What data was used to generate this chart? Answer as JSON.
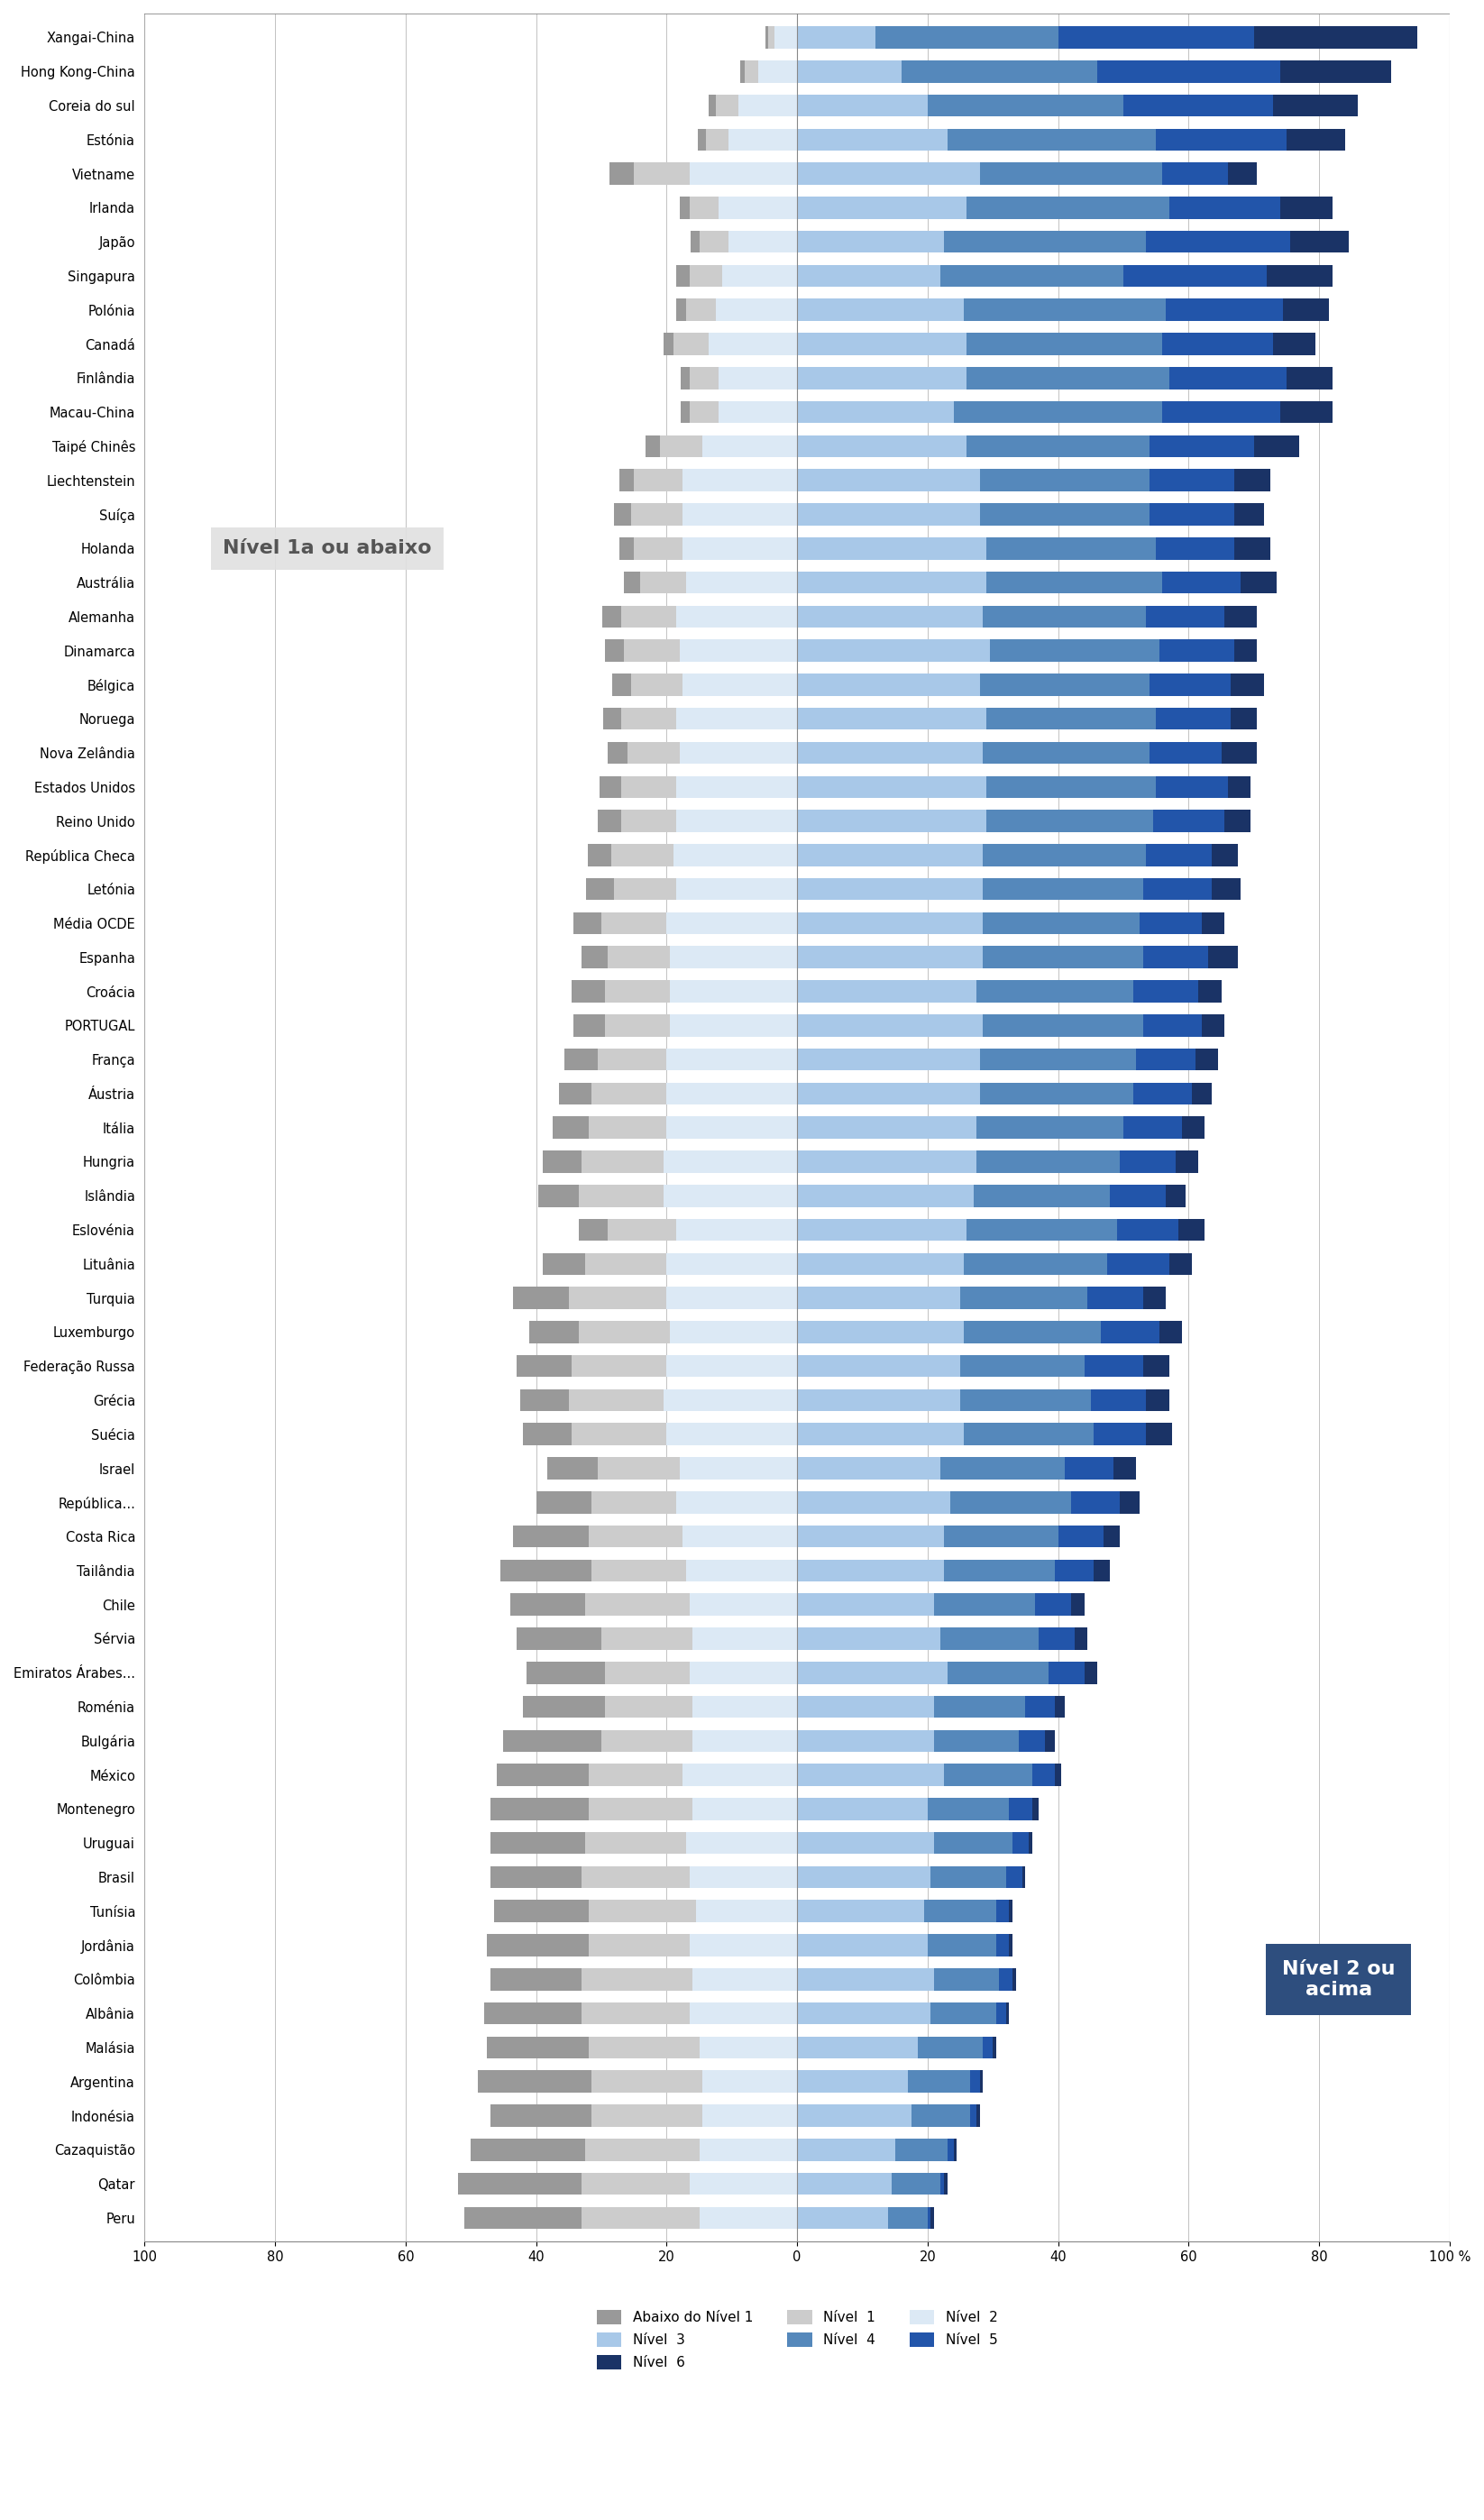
{
  "countries": [
    "Xangai-China",
    "Hong Kong-China",
    "Coreia do sul",
    "Estónia",
    "Vietname",
    "Irlanda",
    "Japão",
    "Singapura",
    "Polónia",
    "Canadá",
    "Finlândia",
    "Macau-China",
    "Taipé Chinês",
    "Liechtenstein",
    "Suíça",
    "Holanda",
    "Austrália",
    "Alemanha",
    "Dinamarca",
    "Bélgica",
    "Noruega",
    "Nova Zelândia",
    "Estados Unidos",
    "Reino Unido",
    "República Checa",
    "Letónia",
    "Média OCDE",
    "Espanha",
    "Croácia",
    "PORTUGAL",
    "França",
    "Áustria",
    "Itália",
    "Hungria",
    "Islândia",
    "Eslovénia",
    "Lituânia",
    "Turquia",
    "Luxemburgo",
    "Federação Russa",
    "Grécia",
    "Suécia",
    "Israel",
    "República...",
    "Costa Rica",
    "Tailândia",
    "Chile",
    "Sérvia",
    "Emiratos Árabes...",
    "Roménia",
    "Bulgária",
    "México",
    "Montenegro",
    "Uruguai",
    "Brasil",
    "Tunísia",
    "Jordânia",
    "Colômbia",
    "Albânia",
    "Malásia",
    "Argentina",
    "Indonésia",
    "Cazaquistão",
    "Qatar",
    "Peru"
  ],
  "left_levels": {
    "nivel2": [
      3.5,
      6.0,
      9.0,
      10.5,
      16.5,
      12.0,
      10.5,
      11.5,
      12.5,
      13.5,
      12.0,
      12.0,
      14.5,
      17.5,
      17.5,
      17.5,
      17.0,
      18.5,
      18.0,
      17.5,
      18.5,
      18.0,
      18.5,
      18.5,
      19.0,
      18.5,
      20.0,
      19.5,
      19.5,
      19.5,
      20.0,
      20.0,
      20.0,
      20.5,
      20.5,
      18.5,
      20.0,
      20.0,
      19.5,
      20.0,
      20.5,
      20.0,
      18.0,
      18.5,
      17.5,
      17.0,
      16.5,
      16.0,
      16.5,
      16.0,
      16.0,
      17.5,
      16.0,
      17.0,
      16.5,
      15.5,
      16.5,
      16.0,
      16.5,
      15.0,
      14.5,
      14.5,
      15.0,
      16.5,
      15.0
    ],
    "nivel1": [
      0.9,
      2.0,
      3.5,
      3.5,
      8.5,
      4.5,
      4.5,
      5.0,
      4.5,
      5.5,
      4.5,
      4.5,
      6.5,
      7.5,
      8.0,
      7.5,
      7.0,
      8.5,
      8.5,
      8.0,
      8.5,
      8.0,
      8.5,
      8.5,
      9.5,
      9.5,
      10.0,
      9.5,
      10.0,
      10.0,
      10.5,
      11.5,
      12.0,
      12.5,
      13.0,
      10.5,
      12.5,
      15.0,
      14.0,
      14.5,
      14.5,
      14.5,
      12.5,
      13.0,
      14.5,
      14.5,
      16.0,
      14.0,
      13.0,
      13.5,
      14.0,
      14.5,
      16.0,
      15.5,
      16.5,
      16.5,
      15.5,
      17.0,
      16.5,
      17.0,
      17.0,
      17.0,
      17.5,
      16.5,
      18.0
    ],
    "abaixo1": [
      0.4,
      0.7,
      1.1,
      1.2,
      3.8,
      1.5,
      1.3,
      2.0,
      1.5,
      1.5,
      1.4,
      1.4,
      2.2,
      2.3,
      2.6,
      2.3,
      2.5,
      2.8,
      3.0,
      2.9,
      2.7,
      3.0,
      3.3,
      3.5,
      3.6,
      4.3,
      4.3,
      4.0,
      5.0,
      4.8,
      5.2,
      5.0,
      5.5,
      6.0,
      6.2,
      4.5,
      6.5,
      8.5,
      7.5,
      8.5,
      7.5,
      7.5,
      7.8,
      8.5,
      11.5,
      14.0,
      11.5,
      13.0,
      12.0,
      12.5,
      15.0,
      14.0,
      15.0,
      14.5,
      14.0,
      14.5,
      15.5,
      14.0,
      15.0,
      15.5,
      17.5,
      15.5,
      17.5,
      19.0,
      18.0
    ]
  },
  "right_levels": {
    "nivel3": [
      12.0,
      16.0,
      20.0,
      23.0,
      28.0,
      26.0,
      22.5,
      22.0,
      25.5,
      26.0,
      26.0,
      24.0,
      26.0,
      28.0,
      28.0,
      29.0,
      29.0,
      28.5,
      29.5,
      28.0,
      29.0,
      28.5,
      29.0,
      29.0,
      28.5,
      28.5,
      28.5,
      28.5,
      27.5,
      28.5,
      28.0,
      28.0,
      27.5,
      27.5,
      27.0,
      26.0,
      25.5,
      25.0,
      25.5,
      25.0,
      25.0,
      25.5,
      22.0,
      23.5,
      22.5,
      22.5,
      21.0,
      22.0,
      23.0,
      21.0,
      21.0,
      22.5,
      20.0,
      21.0,
      20.5,
      19.5,
      20.0,
      21.0,
      20.5,
      18.5,
      17.0,
      17.5,
      15.0,
      14.5,
      14.0
    ],
    "nivel4": [
      28.0,
      30.0,
      30.0,
      32.0,
      28.0,
      31.0,
      31.0,
      28.0,
      31.0,
      30.0,
      31.0,
      32.0,
      28.0,
      26.0,
      26.0,
      26.0,
      27.0,
      25.0,
      26.0,
      26.0,
      26.0,
      25.5,
      26.0,
      25.5,
      25.0,
      24.5,
      24.0,
      24.5,
      24.0,
      24.5,
      24.0,
      23.5,
      22.5,
      22.0,
      21.0,
      23.0,
      22.0,
      19.5,
      21.0,
      19.0,
      20.0,
      20.0,
      19.0,
      18.5,
      17.5,
      17.0,
      15.5,
      15.0,
      15.5,
      14.0,
      13.0,
      13.5,
      12.5,
      12.0,
      11.5,
      11.0,
      10.5,
      10.0,
      10.0,
      10.0,
      9.5,
      9.0,
      8.0,
      7.5,
      6.0
    ],
    "nivel5": [
      30.0,
      28.0,
      23.0,
      20.0,
      10.0,
      17.0,
      22.0,
      22.0,
      18.0,
      17.0,
      18.0,
      18.0,
      16.0,
      13.0,
      13.0,
      12.0,
      12.0,
      12.0,
      11.5,
      12.5,
      11.5,
      11.0,
      11.0,
      11.0,
      10.0,
      10.5,
      9.5,
      10.0,
      10.0,
      9.0,
      9.0,
      9.0,
      9.0,
      8.5,
      8.5,
      9.5,
      9.5,
      8.5,
      9.0,
      9.0,
      8.5,
      8.0,
      7.5,
      7.5,
      7.0,
      6.0,
      5.5,
      5.5,
      5.5,
      4.5,
      4.0,
      3.5,
      3.5,
      2.5,
      2.5,
      2.0,
      2.0,
      2.0,
      1.5,
      1.5,
      1.5,
      1.0,
      1.0,
      0.5,
      0.5
    ],
    "nivel6": [
      25.0,
      17.0,
      13.0,
      9.0,
      4.5,
      8.0,
      9.0,
      10.0,
      7.0,
      6.5,
      7.0,
      8.0,
      7.0,
      5.5,
      4.5,
      5.5,
      5.5,
      5.0,
      3.5,
      5.0,
      4.0,
      5.5,
      3.5,
      4.0,
      4.0,
      4.5,
      3.5,
      4.5,
      3.5,
      3.5,
      3.5,
      3.0,
      3.5,
      3.5,
      3.0,
      4.0,
      3.5,
      3.5,
      3.5,
      4.0,
      3.5,
      4.0,
      3.5,
      3.0,
      2.5,
      2.5,
      2.0,
      2.0,
      2.0,
      1.5,
      1.5,
      1.0,
      1.0,
      0.5,
      0.5,
      0.5,
      0.5,
      0.5,
      0.5,
      0.5,
      0.5,
      0.5,
      0.5,
      0.5,
      0.5
    ]
  },
  "colors": {
    "abaixo1": "#999999",
    "nivel1": "#cccccc",
    "nivel2": "#dce9f5",
    "nivel3": "#a8c8e8",
    "nivel4": "#5588bb",
    "nivel5": "#2255aa",
    "nivel6": "#1a3366"
  },
  "legend_labels": {
    "abaixo1": "Abaixo do Nível 1",
    "nivel1": "Nível  1",
    "nivel2": "Nível  2",
    "nivel3": "Nível  3",
    "nivel4": "Nível  4",
    "nivel5": "Nível  5",
    "nivel6": "Nível  6"
  },
  "xticks": [
    -100,
    -80,
    -60,
    -40,
    -20,
    0,
    20,
    40,
    60,
    80,
    100
  ],
  "xticklabels": [
    "100",
    "80",
    "60",
    "40",
    "20",
    "0",
    "20",
    "40",
    "60",
    "80",
    "100 %"
  ],
  "annotation_box1_text": "Nível 1a ou abaixo",
  "annotation_box2_text": "Nível 2 ou\nacima",
  "bar_height": 0.65
}
